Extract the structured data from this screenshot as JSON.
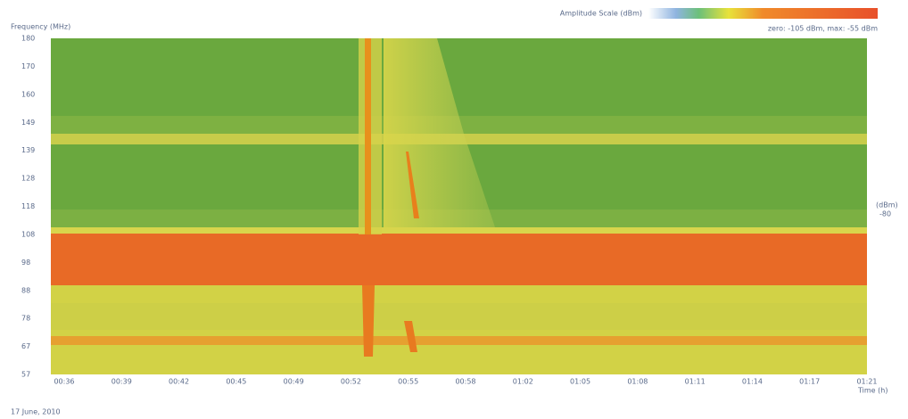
{
  "header": {
    "y_axis_title": "Frequency (MHz)",
    "scale_title": "Amplitude Scale (dBm)",
    "scale_range": "zero: -105 dBm, max: -55 dBm"
  },
  "axes": {
    "y_labels": [
      "180",
      "170",
      "160",
      "149",
      "139",
      "128",
      "118",
      "108",
      "98",
      "88",
      "78",
      "67",
      "57"
    ],
    "x_labels": [
      "00:36",
      "00:39",
      "00:42",
      "00:45",
      "00:49",
      "00:52",
      "00:55",
      "00:58",
      "01:02",
      "01:05",
      "01:08",
      "01:11",
      "01:14",
      "01:17",
      "01:21"
    ],
    "x_title": "Time (h)",
    "right_title": "(dBm)",
    "right_value": "-80"
  },
  "footer": {
    "date": "17 June, 2010"
  }
}
